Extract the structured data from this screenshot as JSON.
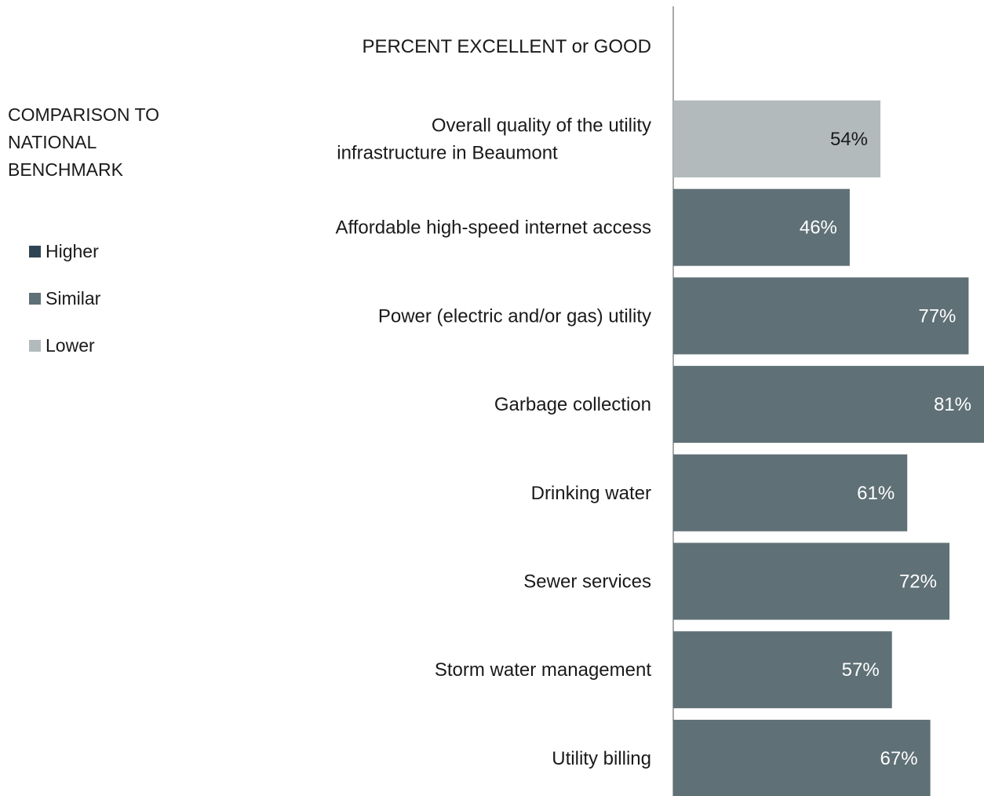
{
  "chart_data": {
    "type": "bar",
    "orientation": "horizontal",
    "header": "PERCENT EXCELLENT or GOOD",
    "legend_title": "COMPARISON TO NATIONAL BENCHMARK",
    "legend": [
      {
        "label": "Higher",
        "color": "#2f4453"
      },
      {
        "label": "Similar",
        "color": "#5f7076"
      },
      {
        "label": "Lower",
        "color": "#b2babc"
      }
    ],
    "categories": [
      "Overall quality of the utility infrastructure in Beaumont",
      "Affordable high-speed internet access",
      "Power (electric and/or gas) utility",
      "Garbage collection",
      "Drinking water",
      "Sewer services",
      "Storm water management",
      "Utility billing"
    ],
    "values": [
      54,
      46,
      77,
      81,
      61,
      72,
      57,
      67
    ],
    "value_labels": [
      "54%",
      "46%",
      "77%",
      "81%",
      "61%",
      "72%",
      "57%",
      "67%"
    ],
    "comparison": [
      "Lower",
      "Similar",
      "Similar",
      "Similar",
      "Similar",
      "Similar",
      "Similar",
      "Similar"
    ],
    "xlim": [
      0,
      81
    ],
    "grid": false,
    "legend_position": "left"
  }
}
